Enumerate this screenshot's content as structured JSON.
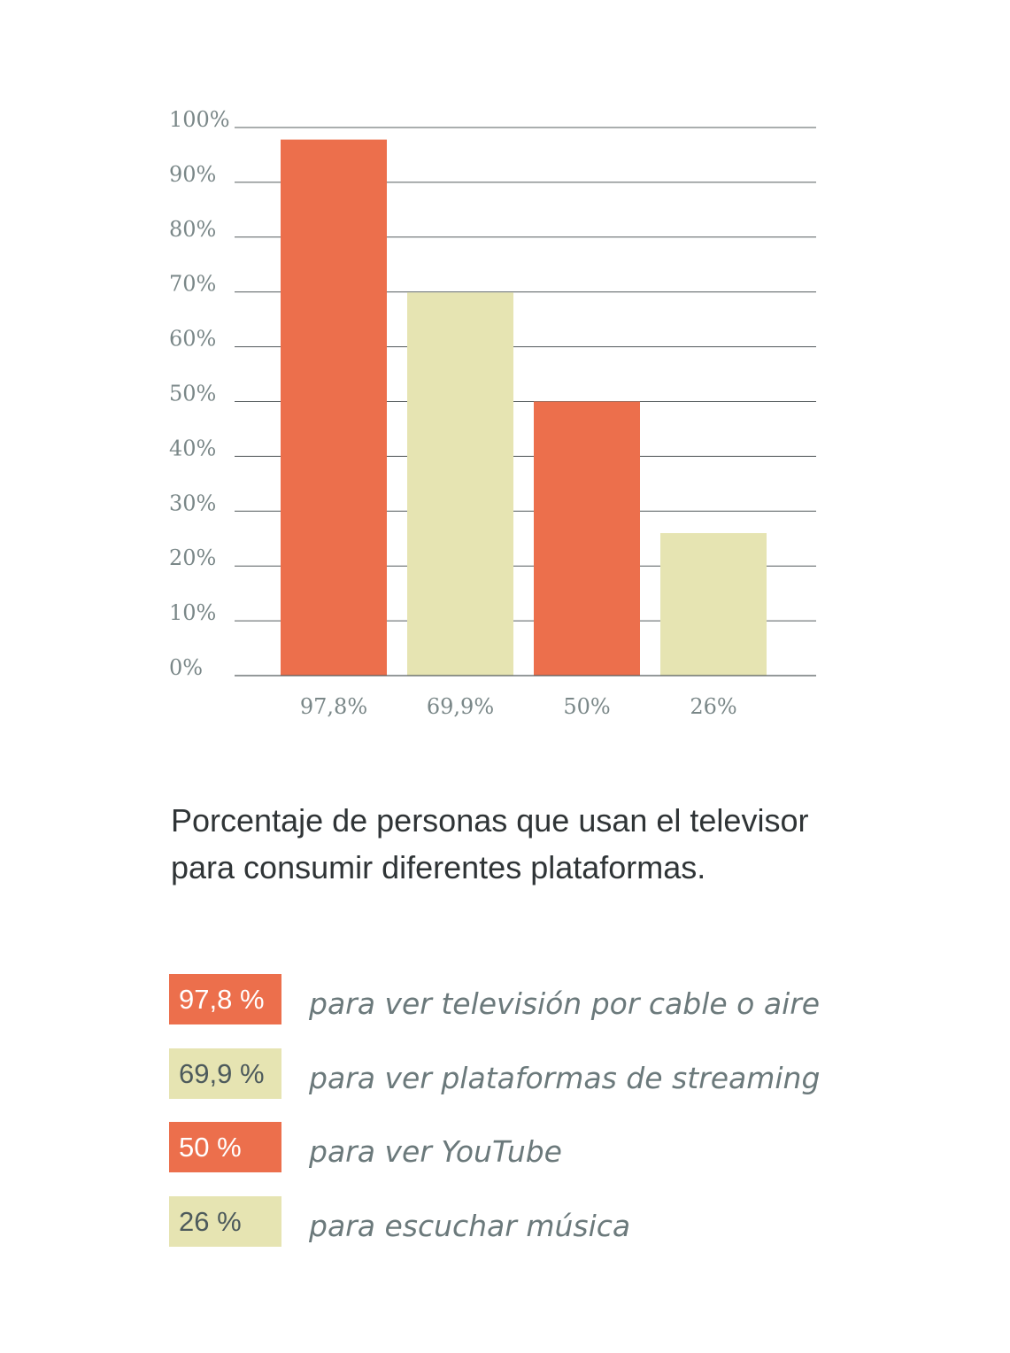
{
  "chart_data": {
    "type": "bar",
    "title": "Porcentaje de personas que usan el televisor para consumir diferentes plataformas.",
    "y_ticks": [
      "0%",
      "10%",
      "20%",
      "30%",
      "40%",
      "50%",
      "60%",
      "70%",
      "80%",
      "90%",
      "100%"
    ],
    "ylim": [
      0,
      100
    ],
    "grid": true,
    "categories": [
      "97,8%",
      "69,9%",
      "50%",
      "26%"
    ],
    "values": [
      97.8,
      69.9,
      50,
      26
    ],
    "colors": [
      "#ec6f4c",
      "#e6e4b2",
      "#ec6f4c",
      "#e6e4b2"
    ]
  },
  "title_lines": [
    "Porcentaje de personas que usan el televisor",
    "para consumir diferentes plataformas."
  ],
  "legend": [
    {
      "value": "97,8 %",
      "label": "para ver televisión por cable o aire",
      "color": "#ec6f4c"
    },
    {
      "value": "69,9 %",
      "label": "para ver plataformas de streaming",
      "color": "#e6e4b2"
    },
    {
      "value": "50 %",
      "label": "para ver YouTube",
      "color": "#ec6f4c"
    },
    {
      "value": "26 %",
      "label": "para escuchar música",
      "color": "#e6e4b2"
    }
  ]
}
